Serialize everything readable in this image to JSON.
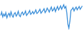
{
  "chart_data": {
    "type": "line",
    "categories": [
      null,
      null,
      null,
      null,
      null,
      null,
      null,
      null,
      null,
      null,
      null,
      null,
      null,
      null,
      null,
      null,
      null,
      null,
      null,
      null,
      null,
      null,
      null,
      null,
      null,
      null,
      null,
      null,
      null,
      null,
      null,
      null,
      null,
      null,
      null,
      null,
      null,
      null,
      null,
      null,
      null,
      null,
      null,
      null,
      null,
      null,
      null,
      null,
      null,
      null,
      null,
      null,
      null,
      null,
      null,
      null,
      null,
      null,
      null,
      null,
      null,
      null,
      null,
      null,
      null,
      null,
      null,
      null,
      null,
      null,
      null,
      null,
      null,
      null,
      null,
      null,
      null,
      null,
      null,
      null
    ],
    "values": [
      50,
      62,
      45,
      55,
      48,
      60,
      42,
      52,
      58,
      47,
      63,
      50,
      44,
      56,
      60,
      48,
      54,
      65,
      50,
      46,
      58,
      62,
      52,
      57,
      66,
      50,
      55,
      60,
      68,
      54,
      58,
      64,
      56,
      62,
      70,
      57,
      60,
      66,
      72,
      58,
      63,
      68,
      74,
      60,
      66,
      76,
      70,
      62,
      72,
      80,
      66,
      70,
      78,
      64,
      74,
      82,
      70,
      76,
      84,
      72,
      80,
      88,
      76,
      82,
      60,
      20,
      5,
      30,
      68,
      72,
      78,
      66,
      74,
      80,
      70,
      76,
      82,
      72,
      78,
      84
    ],
    "color": "#3a8ed8",
    "ylim": [
      0,
      100
    ],
    "grid": false,
    "tick_labels": false
  }
}
